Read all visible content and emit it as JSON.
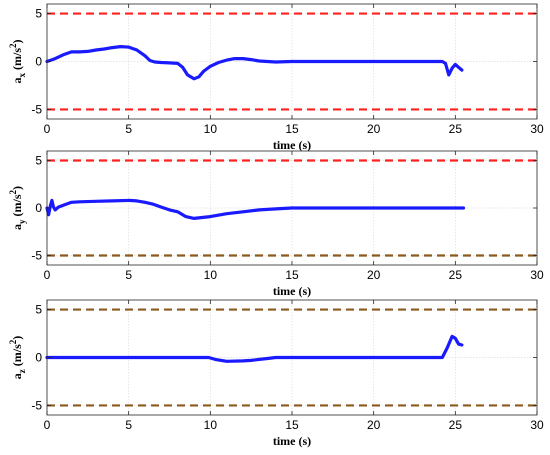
{
  "chart_data": [
    {
      "type": "line",
      "ylabel": {
        "base": "a",
        "sub": "x",
        "unit": " (m/s",
        "sup": "2",
        "close": ")"
      },
      "xlabel": "time (s)",
      "xlim": [
        0,
        30
      ],
      "ylim": [
        -6,
        6
      ],
      "xticks": [
        0,
        5,
        10,
        15,
        20,
        25,
        30
      ],
      "yticks": [
        5,
        0,
        -5
      ],
      "ytick_labels": [
        "5",
        "0",
        "-5"
      ],
      "grid": true,
      "limits": [
        5,
        -5
      ],
      "limit_colors": [
        "#ff2020",
        "#ff2020"
      ],
      "line_color": "#1a1aff",
      "series": [
        {
          "x": [
            0,
            0.5,
            1,
            1.5,
            2,
            2.5,
            3,
            3.5,
            4,
            4.5,
            5,
            5.5,
            6,
            6.3,
            6.6,
            7,
            7.5,
            8,
            8.3,
            8.6,
            9,
            9.3,
            9.6,
            10,
            10.5,
            11,
            11.5,
            12,
            12.5,
            13,
            13.5,
            14,
            15,
            17,
            20,
            22,
            24,
            24.2,
            24.4,
            24.6,
            24.8,
            25,
            25.2,
            25.4
          ],
          "y": [
            0,
            0.3,
            0.7,
            1.0,
            1.0,
            1.05,
            1.2,
            1.3,
            1.45,
            1.55,
            1.5,
            1.2,
            0.6,
            0.1,
            -0.05,
            -0.1,
            -0.15,
            -0.2,
            -0.6,
            -1.4,
            -1.8,
            -1.6,
            -1.0,
            -0.5,
            -0.1,
            0.15,
            0.3,
            0.3,
            0.2,
            0.05,
            0,
            -0.05,
            0,
            0,
            0,
            0,
            0,
            0,
            -0.2,
            -1.4,
            -0.7,
            -0.3,
            -0.6,
            -0.9
          ]
        }
      ]
    },
    {
      "type": "line",
      "ylabel": {
        "base": "a",
        "sub": "y",
        "unit": " (m/s",
        "sup": "2",
        "close": ")"
      },
      "xlabel": "time (s)",
      "xlim": [
        0,
        30
      ],
      "ylim": [
        -6,
        6
      ],
      "xticks": [
        0,
        5,
        10,
        15,
        20,
        25,
        30
      ],
      "yticks": [
        5,
        0,
        -5
      ],
      "ytick_labels": [
        "5",
        "0",
        "-5"
      ],
      "grid": true,
      "limits": [
        5,
        -5
      ],
      "limit_colors": [
        "#ff2020",
        "#8b5a1e"
      ],
      "line_color": "#1a1aff",
      "series": [
        {
          "x": [
            0,
            0.1,
            0.2,
            0.3,
            0.4,
            0.5,
            0.7,
            1,
            1.5,
            2,
            3,
            4,
            5,
            5.5,
            6,
            6.5,
            7,
            7.5,
            8,
            8.5,
            9,
            10,
            11,
            12,
            13,
            14,
            15,
            17,
            20,
            22,
            25.5
          ],
          "y": [
            0,
            -0.7,
            0.2,
            0.8,
            0.1,
            -0.2,
            0.1,
            0.3,
            0.6,
            0.65,
            0.7,
            0.75,
            0.8,
            0.75,
            0.6,
            0.4,
            0.1,
            -0.2,
            -0.4,
            -0.9,
            -1.1,
            -0.9,
            -0.6,
            -0.4,
            -0.2,
            -0.1,
            0,
            0,
            0,
            0,
            0
          ]
        }
      ]
    },
    {
      "type": "line",
      "ylabel": {
        "base": "a",
        "sub": "z",
        "unit": " (m/s",
        "sup": "2",
        "close": ")"
      },
      "xlabel": "time (s)",
      "xlim": [
        0,
        30
      ],
      "ylim": [
        -6,
        6
      ],
      "xticks": [
        0,
        5,
        10,
        15,
        20,
        25,
        30
      ],
      "yticks": [
        5,
        0,
        -5
      ],
      "ytick_labels": [
        "5",
        "0",
        "-5"
      ],
      "grid": true,
      "limits": [
        5,
        -5
      ],
      "limit_colors": [
        "#8b5a1e",
        "#8b5a1e"
      ],
      "line_color": "#1a1aff",
      "series": [
        {
          "x": [
            0,
            2,
            5,
            8,
            9.9,
            10.3,
            11,
            12,
            12.5,
            13,
            13.5,
            14,
            15,
            18,
            20,
            22,
            24.2,
            24.5,
            24.8,
            25,
            25.2,
            25.4
          ],
          "y": [
            0,
            0,
            0,
            0,
            0,
            -0.2,
            -0.4,
            -0.35,
            -0.3,
            -0.2,
            -0.1,
            0,
            0,
            0,
            0,
            0,
            0,
            1.0,
            2.2,
            2.0,
            1.4,
            1.3
          ]
        }
      ]
    }
  ]
}
